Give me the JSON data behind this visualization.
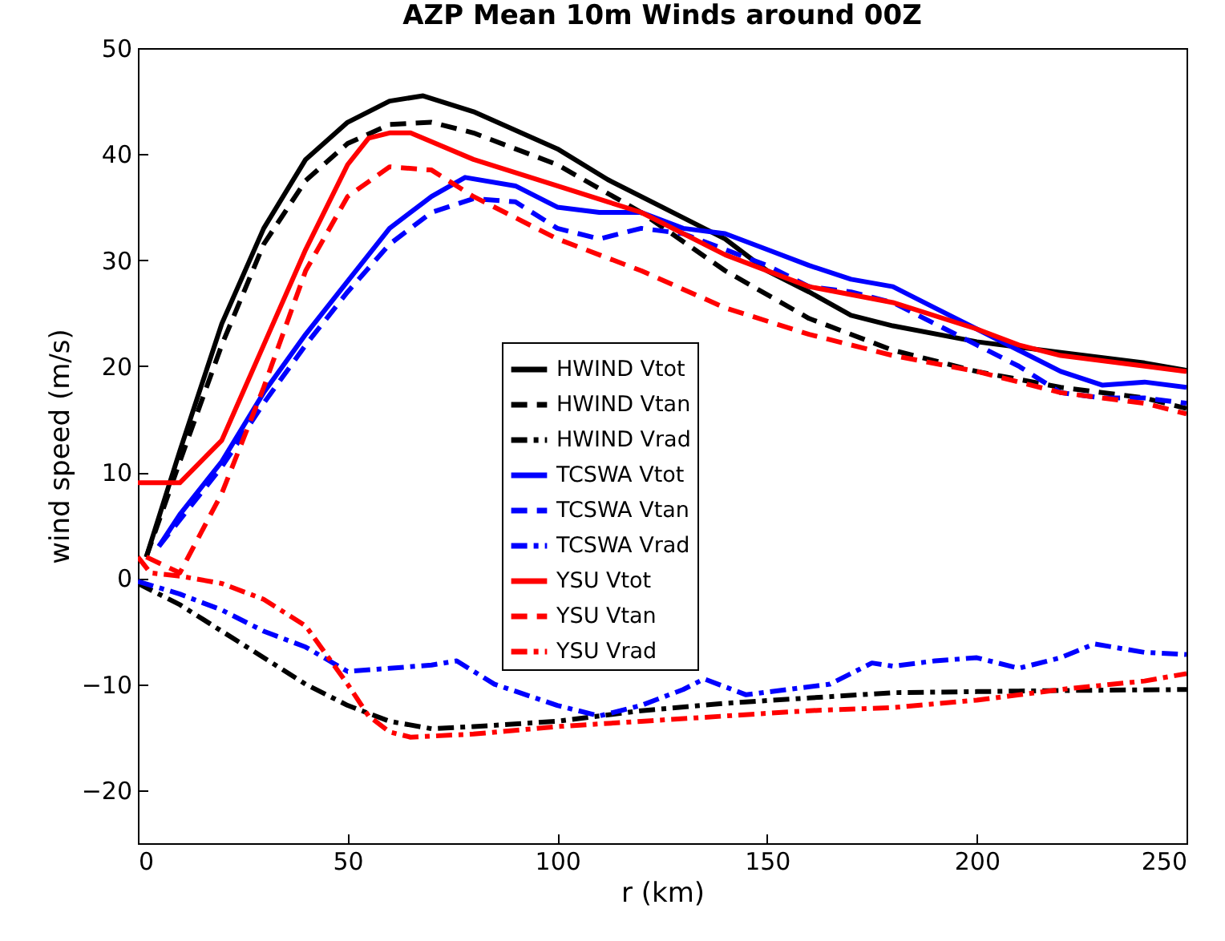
{
  "chart_data": {
    "type": "line",
    "title": "AZP Mean 10m Winds around 00Z",
    "xlabel": "r (km)",
    "ylabel": "wind speed (m/s)",
    "xlim": [
      0,
      250
    ],
    "xticks": [
      0,
      50,
      100,
      150,
      200,
      250
    ],
    "ylim": [
      -25,
      50
    ],
    "yticks": [
      -20,
      -10,
      0,
      10,
      20,
      30,
      40,
      50
    ],
    "grid": false,
    "legend": "center",
    "series": [
      {
        "name": "HWIND Vtot",
        "color": "#000000",
        "line_style": "solid",
        "x": [
          2,
          10,
          20,
          30,
          40,
          50,
          60,
          68,
          80,
          100,
          112,
          130,
          140,
          150,
          160,
          170,
          180,
          200,
          220,
          240,
          250
        ],
        "values": [
          2,
          12,
          24,
          33,
          39.5,
          43,
          45,
          45.5,
          44,
          40.5,
          37.6,
          34,
          32,
          29,
          27,
          24.8,
          23.8,
          22.3,
          21.3,
          20.3,
          19.6
        ]
      },
      {
        "name": "HWIND Vtan",
        "color": "#000000",
        "line_style": "dashed",
        "x": [
          2,
          10,
          20,
          30,
          40,
          50,
          60,
          70,
          80,
          100,
          120,
          140,
          160,
          180,
          200,
          220,
          240,
          250
        ],
        "values": [
          2,
          11,
          22,
          31.5,
          37.5,
          41,
          42.8,
          43,
          42,
          39,
          34.5,
          29,
          24.5,
          21.5,
          19.5,
          18,
          17,
          16
        ]
      },
      {
        "name": "HWIND Vrad",
        "color": "#000000",
        "line_style": "dashdot",
        "x": [
          0,
          10,
          20,
          30,
          40,
          50,
          60,
          70,
          80,
          100,
          120,
          140,
          160,
          180,
          200,
          220,
          250
        ],
        "values": [
          -0.5,
          -2.5,
          -5,
          -7.5,
          -10,
          -12,
          -13.5,
          -14.2,
          -14,
          -13.5,
          -12.5,
          -11.8,
          -11.3,
          -10.8,
          -10.7,
          -10.6,
          -10.5
        ]
      },
      {
        "name": "TCSWA Vtot",
        "color": "#0000ff",
        "line_style": "solid",
        "x": [
          5,
          10,
          20,
          30,
          40,
          50,
          60,
          70,
          78,
          90,
          100,
          110,
          120,
          130,
          140,
          150,
          160,
          170,
          180,
          190,
          200,
          210,
          220,
          230,
          240,
          250
        ],
        "values": [
          3,
          6,
          11,
          17.5,
          23,
          28,
          33,
          36,
          37.8,
          37,
          35,
          34.5,
          34.5,
          33,
          32.5,
          31,
          29.5,
          28.2,
          27.5,
          25.5,
          23.5,
          21.5,
          19.5,
          18.2,
          18.5,
          18
        ]
      },
      {
        "name": "TCSWA Vtan",
        "color": "#0000ff",
        "line_style": "dashed",
        "x": [
          5,
          10,
          20,
          30,
          40,
          50,
          60,
          70,
          80,
          90,
          100,
          110,
          120,
          130,
          140,
          150,
          160,
          170,
          180,
          190,
          200,
          210,
          220,
          230,
          240,
          250
        ],
        "values": [
          3,
          5.5,
          10.5,
          16.5,
          22,
          27,
          31.5,
          34.5,
          35.8,
          35.5,
          33,
          32,
          33,
          32.5,
          31,
          29.5,
          27.5,
          27,
          26,
          24,
          22,
          20,
          17.5,
          17,
          17,
          16.5
        ]
      },
      {
        "name": "TCSWA Vrad",
        "color": "#0000ff",
        "line_style": "dashdot",
        "x": [
          0,
          10,
          20,
          30,
          40,
          50,
          60,
          70,
          76,
          85,
          100,
          110,
          120,
          130,
          135,
          145,
          155,
          165,
          175,
          180,
          190,
          200,
          210,
          220,
          228,
          240,
          250
        ],
        "values": [
          -0.3,
          -1.5,
          -3,
          -5,
          -6.5,
          -8.8,
          -8.5,
          -8.2,
          -7.8,
          -10,
          -12,
          -13,
          -12,
          -10.5,
          -9.5,
          -11,
          -10.5,
          -10,
          -8,
          -8.3,
          -7.8,
          -7.5,
          -8.5,
          -7.5,
          -6.2,
          -7,
          -7.2
        ]
      },
      {
        "name": "YSU Vtot",
        "color": "#ff0000",
        "line_style": "solid",
        "x": [
          0,
          10,
          20,
          30,
          40,
          50,
          55,
          60,
          65,
          80,
          100,
          120,
          140,
          160,
          180,
          200,
          210,
          220,
          240,
          250
        ],
        "values": [
          9,
          9,
          13,
          22,
          31,
          39,
          41.5,
          42,
          42,
          39.5,
          37,
          34.5,
          30.5,
          27.5,
          26,
          23.5,
          22,
          21,
          20,
          19.5
        ]
      },
      {
        "name": "YSU Vtan",
        "color": "#ff0000",
        "line_style": "dashed",
        "x": [
          2,
          10,
          20,
          30,
          40,
          50,
          60,
          70,
          80,
          100,
          120,
          140,
          160,
          180,
          200,
          220,
          240,
          250
        ],
        "values": [
          2,
          0.5,
          8,
          18,
          29,
          36,
          38.8,
          38.5,
          36,
          32,
          29,
          25.5,
          23,
          21,
          19.5,
          17.5,
          16.5,
          15.5
        ]
      },
      {
        "name": "YSU Vrad",
        "color": "#ff0000",
        "line_style": "dashdot",
        "x": [
          0,
          3,
          10,
          20,
          30,
          40,
          50,
          55,
          60,
          65,
          80,
          100,
          120,
          140,
          160,
          180,
          200,
          220,
          240,
          250
        ],
        "values": [
          2,
          0.5,
          0.2,
          -0.5,
          -2,
          -4.5,
          -10,
          -13,
          -14.5,
          -15,
          -14.7,
          -14,
          -13.5,
          -13,
          -12.5,
          -12.2,
          -11.5,
          -10.5,
          -9.7,
          -9
        ]
      }
    ]
  }
}
